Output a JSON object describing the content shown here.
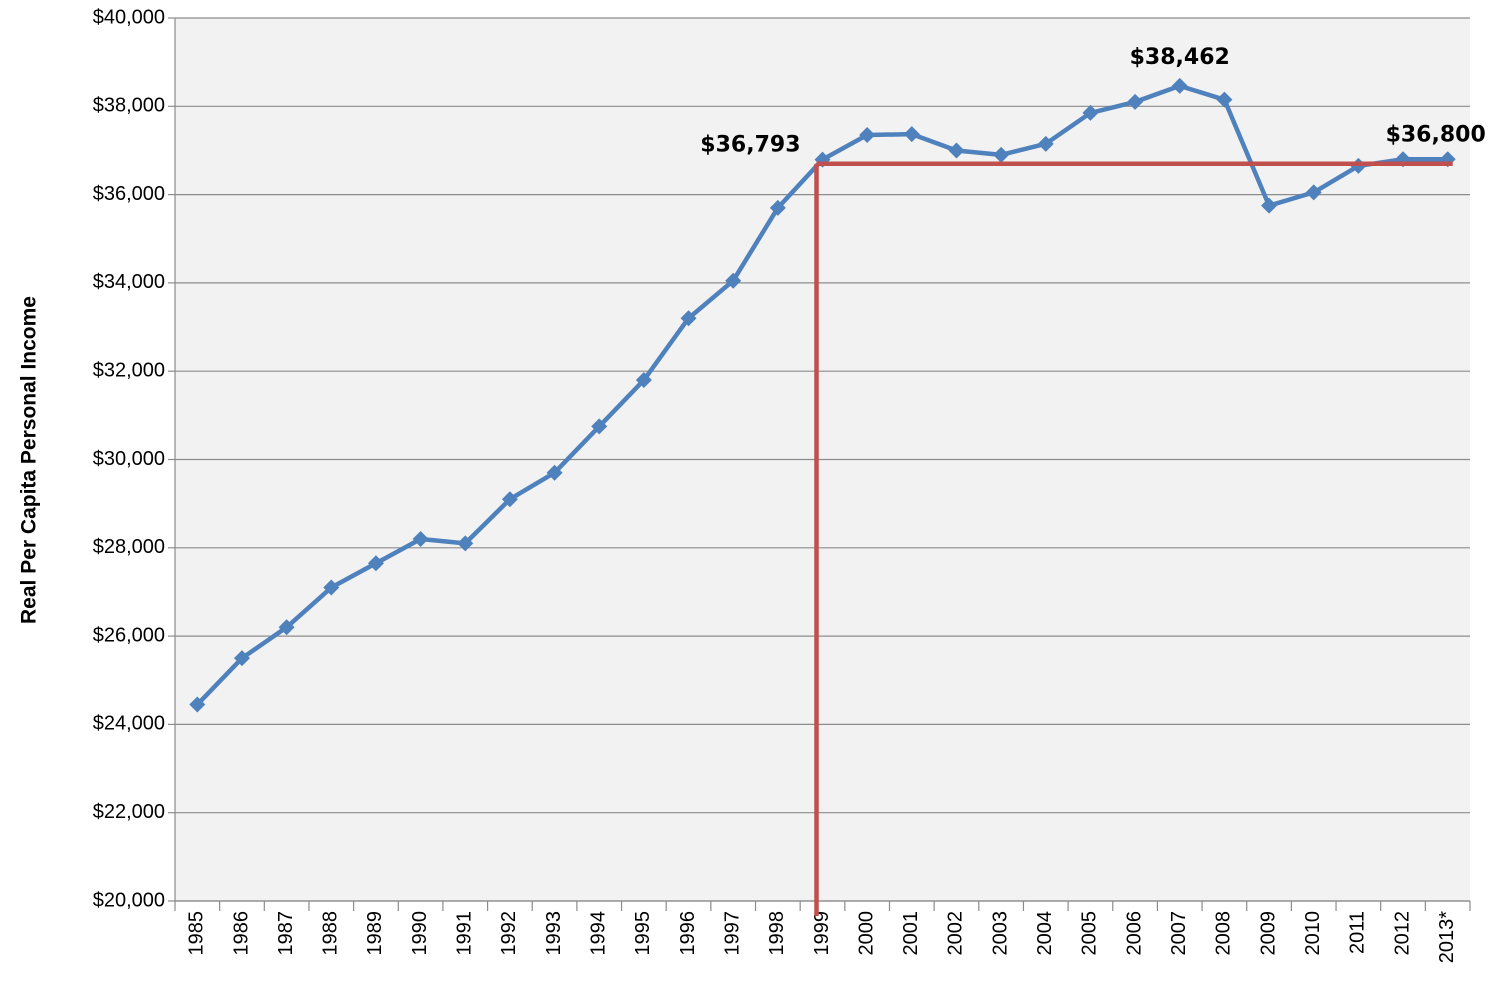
{
  "chart_data": {
    "type": "line",
    "y_axis_label": "Real Per Capita Personal Income",
    "categories": [
      "1985",
      "1986",
      "1987",
      "1988",
      "1989",
      "1990",
      "1991",
      "1992",
      "1993",
      "1994",
      "1995",
      "1996",
      "1997",
      "1998",
      "1999",
      "2000",
      "2001",
      "2002",
      "2003",
      "2004",
      "2005",
      "2006",
      "2007",
      "2008",
      "2009",
      "2010",
      "2011",
      "2012",
      "2013*"
    ],
    "series": [
      {
        "color": "#4f81bd",
        "values": [
          24450,
          25500,
          26200,
          27100,
          27650,
          28200,
          28100,
          29100,
          29700,
          30750,
          31800,
          33200,
          34050,
          35700,
          36793,
          37350,
          37370,
          37000,
          36900,
          37150,
          37850,
          38100,
          38462,
          38150,
          35750,
          36050,
          36650,
          36800,
          36800
        ],
        "value_labels": [
          null,
          null,
          null,
          null,
          null,
          null,
          null,
          null,
          null,
          null,
          null,
          null,
          null,
          null,
          "$36,793",
          null,
          null,
          null,
          null,
          null,
          null,
          null,
          "$38,462",
          null,
          null,
          null,
          null,
          null,
          "$36,800"
        ]
      }
    ],
    "reference_line": {
      "value": 36700,
      "start_category": 14,
      "color": "#c0504d"
    },
    "ylim": [
      20000,
      40000
    ],
    "yticks": [
      {
        "value": 20000,
        "label": "$20,000"
      },
      {
        "value": 22000,
        "label": "$22,000"
      },
      {
        "value": 24000,
        "label": "$24,000"
      },
      {
        "value": 26000,
        "label": "$26,000"
      },
      {
        "value": 28000,
        "label": "$28,000"
      },
      {
        "value": 30000,
        "label": "$30,000"
      },
      {
        "value": 32000,
        "label": "$32,000"
      },
      {
        "value": 34000,
        "label": "$34,000"
      },
      {
        "value": 36000,
        "label": "$36,000"
      },
      {
        "value": 38000,
        "label": "$38,000"
      },
      {
        "value": 40000,
        "label": "$40,000"
      }
    ],
    "grid": true
  }
}
